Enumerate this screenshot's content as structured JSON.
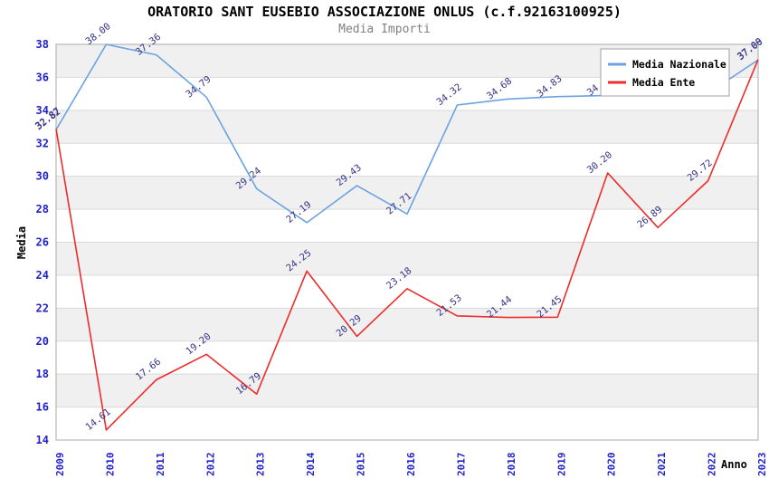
{
  "title": "ORATORIO SANT EUSEBIO ASSOCIAZIONE ONLUS (c.f.92163100925)",
  "subtitle": "Media Importi",
  "chart_data": {
    "type": "line",
    "title": "ORATORIO SANT EUSEBIO ASSOCIAZIONE ONLUS (c.f.92163100925)",
    "subtitle": "Media Importi",
    "categories": [
      "2009",
      "2010",
      "2011",
      "2012",
      "2013",
      "2014",
      "2015",
      "2016",
      "2017",
      "2018",
      "2019",
      "2020",
      "2021",
      "2022",
      "2023"
    ],
    "series": [
      {
        "name": "Media Nazionale",
        "color": "#6ba3e0",
        "values": [
          32.82,
          38.0,
          37.36,
          34.79,
          29.24,
          27.19,
          29.43,
          27.71,
          34.32,
          34.68,
          34.83,
          34.9,
          34.9,
          35.03,
          37.06
        ]
      },
      {
        "name": "Media Ente",
        "color": "#ee2c2c",
        "values": [
          32.87,
          14.61,
          17.66,
          19.2,
          16.79,
          24.25,
          20.29,
          23.18,
          21.53,
          21.44,
          21.45,
          30.2,
          26.89,
          29.72,
          37.09
        ]
      }
    ],
    "xlabel": "Anno",
    "ylabel": "Media",
    "ylim": [
      14,
      38
    ],
    "ytick_step": 2,
    "grid": "horizontal-bands",
    "legend_position": "top-right",
    "label_decimals": 2
  },
  "colors": {
    "tick_label": "#2222cc",
    "data_label": "#333388",
    "band": "#f0f0f0",
    "gridline": "#d9d9d9",
    "plot_border": "#aaaaaa",
    "axis_title": "#000000",
    "legend_border": "#a0a0a0",
    "legend_bg": "#ffffff",
    "legend_text": "#000000"
  }
}
